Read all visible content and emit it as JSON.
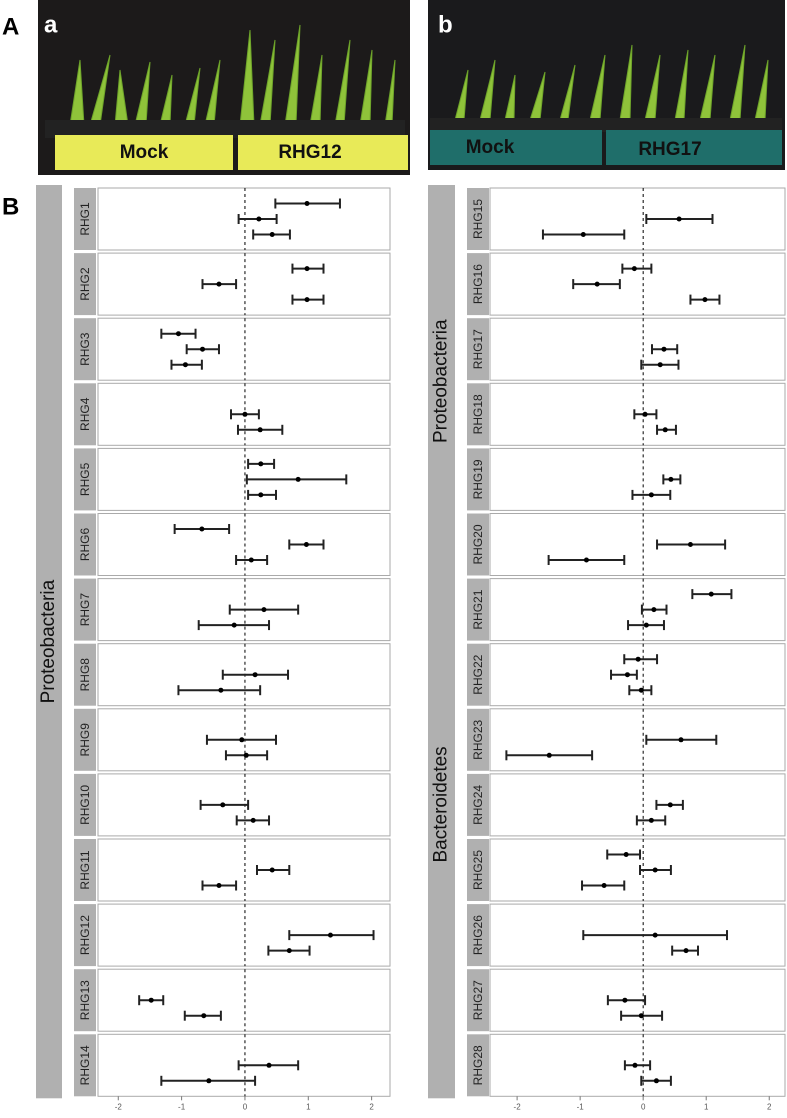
{
  "panel_labels": [
    "A",
    "B"
  ],
  "photos": [
    {
      "panel": "a",
      "labels": [
        "Mock",
        "RHG12"
      ]
    },
    {
      "panel": "b",
      "labels": [
        "Mock",
        "RHG17"
      ]
    }
  ],
  "chart_data": [
    {
      "type": "forest",
      "xlim": [
        -2.32,
        2.29
      ],
      "xticks": [
        -2,
        -1,
        0,
        1,
        2
      ],
      "reference_line": 0,
      "groups": [
        {
          "name": "Proteobacteria",
          "rows": [
            {
              "label": "RHG1",
              "values": [
                0.98,
                0.22,
                0.43
              ],
              "low": [
                0.48,
                -0.1,
                0.13
              ],
              "high": [
                1.5,
                0.5,
                0.71
              ]
            },
            {
              "label": "RHG2",
              "values": [
                0.98,
                -0.41,
                0.98
              ],
              "low": [
                0.75,
                -0.67,
                0.75
              ],
              "high": [
                1.24,
                -0.14,
                1.24
              ]
            },
            {
              "label": "RHG3",
              "values": [
                -1.05,
                -0.67,
                -0.94
              ],
              "low": [
                -1.32,
                -0.92,
                -1.16
              ],
              "high": [
                -0.78,
                -0.41,
                -0.68
              ]
            },
            {
              "label": "RHG4",
              "values": [
                0,
                0.24
              ],
              "low": [
                -0.22,
                -0.11
              ],
              "high": [
                0.22,
                0.59
              ]
            },
            {
              "label": "RHG5",
              "values": [
                0.25,
                0.84,
                0.25
              ],
              "low": [
                0.05,
                0.03,
                0.05
              ],
              "high": [
                0.46,
                1.6,
                0.49
              ]
            },
            {
              "label": "RHG6",
              "values": [
                -0.68,
                0.97,
                0.1
              ],
              "low": [
                -1.11,
                0.7,
                -0.14
              ],
              "high": [
                -0.25,
                1.24,
                0.35
              ]
            },
            {
              "label": "RHG7",
              "values": [
                0.3,
                -0.17
              ],
              "low": [
                -0.24,
                -0.73
              ],
              "high": [
                0.84,
                0.38
              ]
            },
            {
              "label": "RHG8",
              "values": [
                0.16,
                -0.38
              ],
              "low": [
                -0.35,
                -1.05
              ],
              "high": [
                0.68,
                0.24
              ]
            },
            {
              "label": "RHG9",
              "values": [
                -0.05,
                0.02
              ],
              "low": [
                -0.6,
                -0.3
              ],
              "high": [
                0.49,
                0.35
              ]
            },
            {
              "label": "RHG10",
              "values": [
                -0.35,
                0.13
              ],
              "low": [
                -0.7,
                -0.13
              ],
              "high": [
                0.05,
                0.38
              ]
            },
            {
              "label": "RHG11",
              "values": [
                0.43,
                -0.41
              ],
              "low": [
                0.19,
                -0.67
              ],
              "high": [
                0.7,
                -0.14
              ]
            },
            {
              "label": "RHG12",
              "values": [
                1.35,
                0.7
              ],
              "low": [
                0.7,
                0.37
              ],
              "high": [
                2.03,
                1.02
              ]
            },
            {
              "label": "RHG13",
              "values": [
                -1.48,
                -0.65
              ],
              "low": [
                -1.67,
                -0.95
              ],
              "high": [
                -1.29,
                -0.38
              ]
            },
            {
              "label": "RHG14",
              "values": [
                0.38,
                -0.57
              ],
              "low": [
                -0.1,
                -1.32
              ],
              "high": [
                0.84,
                0.16
              ]
            }
          ]
        }
      ]
    },
    {
      "type": "forest",
      "xlim": [
        -2.43,
        2.25
      ],
      "xticks": [
        -2,
        -1,
        0,
        1,
        2
      ],
      "reference_line": 0,
      "groups": [
        {
          "name": "Proteobacteria",
          "rows": [
            {
              "label": "RHG15",
              "values": [
                0.57,
                -0.95
              ],
              "low": [
                0.05,
                -1.59
              ],
              "high": [
                1.1,
                -0.3
              ]
            },
            {
              "label": "RHG16",
              "values": [
                -0.14,
                -0.73,
                0.98
              ],
              "low": [
                -0.33,
                -1.11,
                0.75
              ],
              "high": [
                0.13,
                -0.37,
                1.21
              ]
            },
            {
              "label": "RHG17",
              "values": [
                0.33,
                0.27
              ],
              "low": [
                0.14,
                -0.03
              ],
              "high": [
                0.54,
                0.56
              ]
            },
            {
              "label": "RHG18",
              "values": [
                0.03,
                0.35
              ],
              "low": [
                -0.14,
                0.22
              ],
              "high": [
                0.21,
                0.52
              ]
            },
            {
              "label": "RHG19",
              "values": [
                0.44,
                0.13
              ],
              "low": [
                0.32,
                -0.17
              ],
              "high": [
                0.59,
                0.43
              ]
            },
            {
              "label": "RHG20",
              "values": [
                0.75,
                -0.9
              ],
              "low": [
                0.22,
                -1.5
              ],
              "high": [
                1.3,
                -0.3
              ]
            }
          ]
        },
        {
          "name": "Bacteroidetes",
          "rows": [
            {
              "label": "RHG21",
              "values": [
                1.08,
                0.17,
                0.05
              ],
              "low": [
                0.78,
                -0.02,
                -0.24
              ],
              "high": [
                1.4,
                0.37,
                0.33
              ]
            },
            {
              "label": "RHG22",
              "values": [
                -0.08,
                -0.25,
                -0.03
              ],
              "low": [
                -0.3,
                -0.51,
                -0.22
              ],
              "high": [
                0.22,
                -0.1,
                0.13
              ]
            },
            {
              "label": "RHG23",
              "values": [
                0.6,
                -1.49
              ],
              "low": [
                0.05,
                -2.17
              ],
              "high": [
                1.16,
                -0.81
              ]
            },
            {
              "label": "RHG24",
              "values": [
                0.43,
                0.13
              ],
              "low": [
                0.21,
                -0.1
              ],
              "high": [
                0.63,
                0.35
              ]
            },
            {
              "label": "RHG25",
              "values": [
                -0.27,
                0.19,
                -0.62
              ],
              "low": [
                -0.57,
                -0.05,
                -0.97
              ],
              "high": [
                -0.05,
                0.44,
                -0.3
              ]
            },
            {
              "label": "RHG26",
              "values": [
                0.19,
                0.68
              ],
              "low": [
                -0.95,
                0.46
              ],
              "high": [
                1.33,
                0.87
              ]
            },
            {
              "label": "RHG27",
              "values": [
                -0.29,
                -0.03
              ],
              "low": [
                -0.56,
                -0.35
              ],
              "high": [
                0.03,
                0.3
              ]
            }
          ]
        },
        {
          "name": null,
          "rows": [
            {
              "label": "RHG28",
              "values": [
                -0.13,
                0.21
              ],
              "low": [
                -0.29,
                -0.03
              ],
              "high": [
                0.11,
                0.44
              ]
            }
          ]
        }
      ]
    }
  ]
}
